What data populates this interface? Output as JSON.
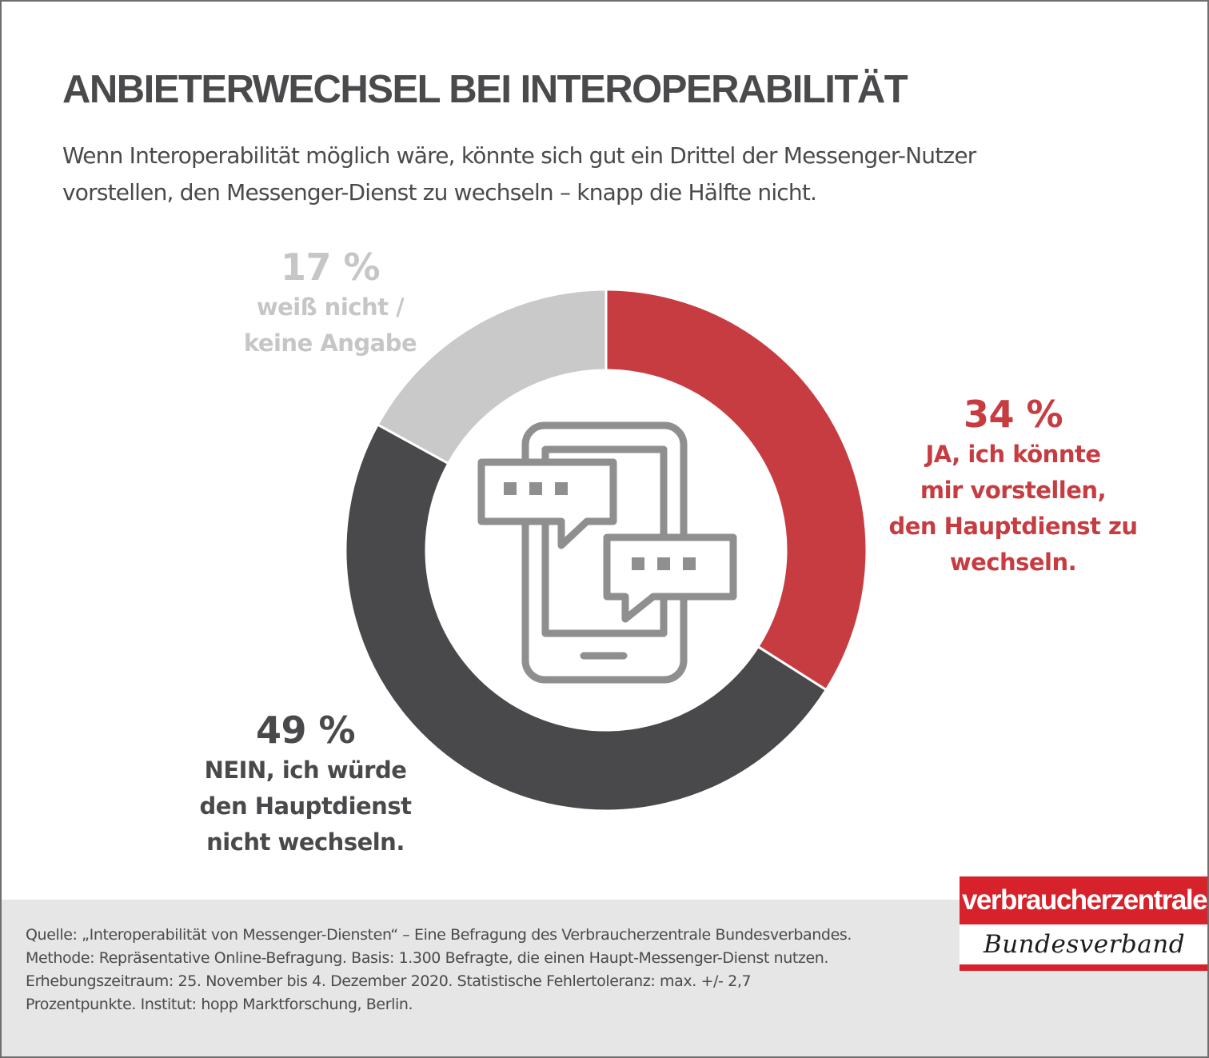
{
  "title": "ANBIETERWECHSEL BEI INTEROPERABILITÄT",
  "subtitle": [
    "Wenn Interoperabilität möglich wäre, könnte sich gut ein Drittel der Messenger-Nutzer",
    "vorstellen, den Messenger-Dienst zu wechseln – knapp die Hälfte nicht."
  ],
  "chart_data": {
    "type": "pie",
    "style": "donut",
    "unit": "%",
    "slices": [
      {
        "label": "JA, ich könnte mir vorstellen, den Hauptdienst zu wechseln.",
        "value": 34,
        "color": "#c63c41"
      },
      {
        "label": "NEIN, ich würde den Hauptdienst nicht wechseln.",
        "value": 49,
        "color": "#49494b"
      },
      {
        "label": "weiß nicht / keine Angabe",
        "value": 17,
        "color": "#c9c9c9"
      }
    ],
    "center_icon": "smartphone-chat-icon"
  },
  "labels": {
    "ja": {
      "pct": "34 %",
      "lines": [
        "JA, ich könnte",
        "mir vorstellen,",
        "den Hauptdienst  zu",
        "wechseln."
      ]
    },
    "nein": {
      "pct": "49 %",
      "lines": [
        "NEIN, ich würde",
        "den Hauptdienst",
        "nicht wechseln."
      ]
    },
    "nk": {
      "pct": "17 %",
      "lines": [
        "weiß nicht /",
        "keine Angabe"
      ]
    }
  },
  "footer": {
    "lines": [
      "Quelle: „Interoperabilität von Messenger-Diensten“ – Eine Befragung des Verbraucherzentrale Bundesverbandes.",
      "Methode: Repräsentative Online-Befragung. Basis: 1.300 Befragte, die einen Haupt-Messenger-Dienst nutzen.",
      "Erhebungszeitraum: 25. November bis 4. Dezember 2020. Statistische Fehlertoleranz: max. +/- 2,7",
      "Prozentpunkte. Institut: hopp Marktforschung, Berlin."
    ]
  },
  "logo": {
    "top": "verbraucherzentrale",
    "bottom": "Bundesverband",
    "color": "#d8222b"
  }
}
